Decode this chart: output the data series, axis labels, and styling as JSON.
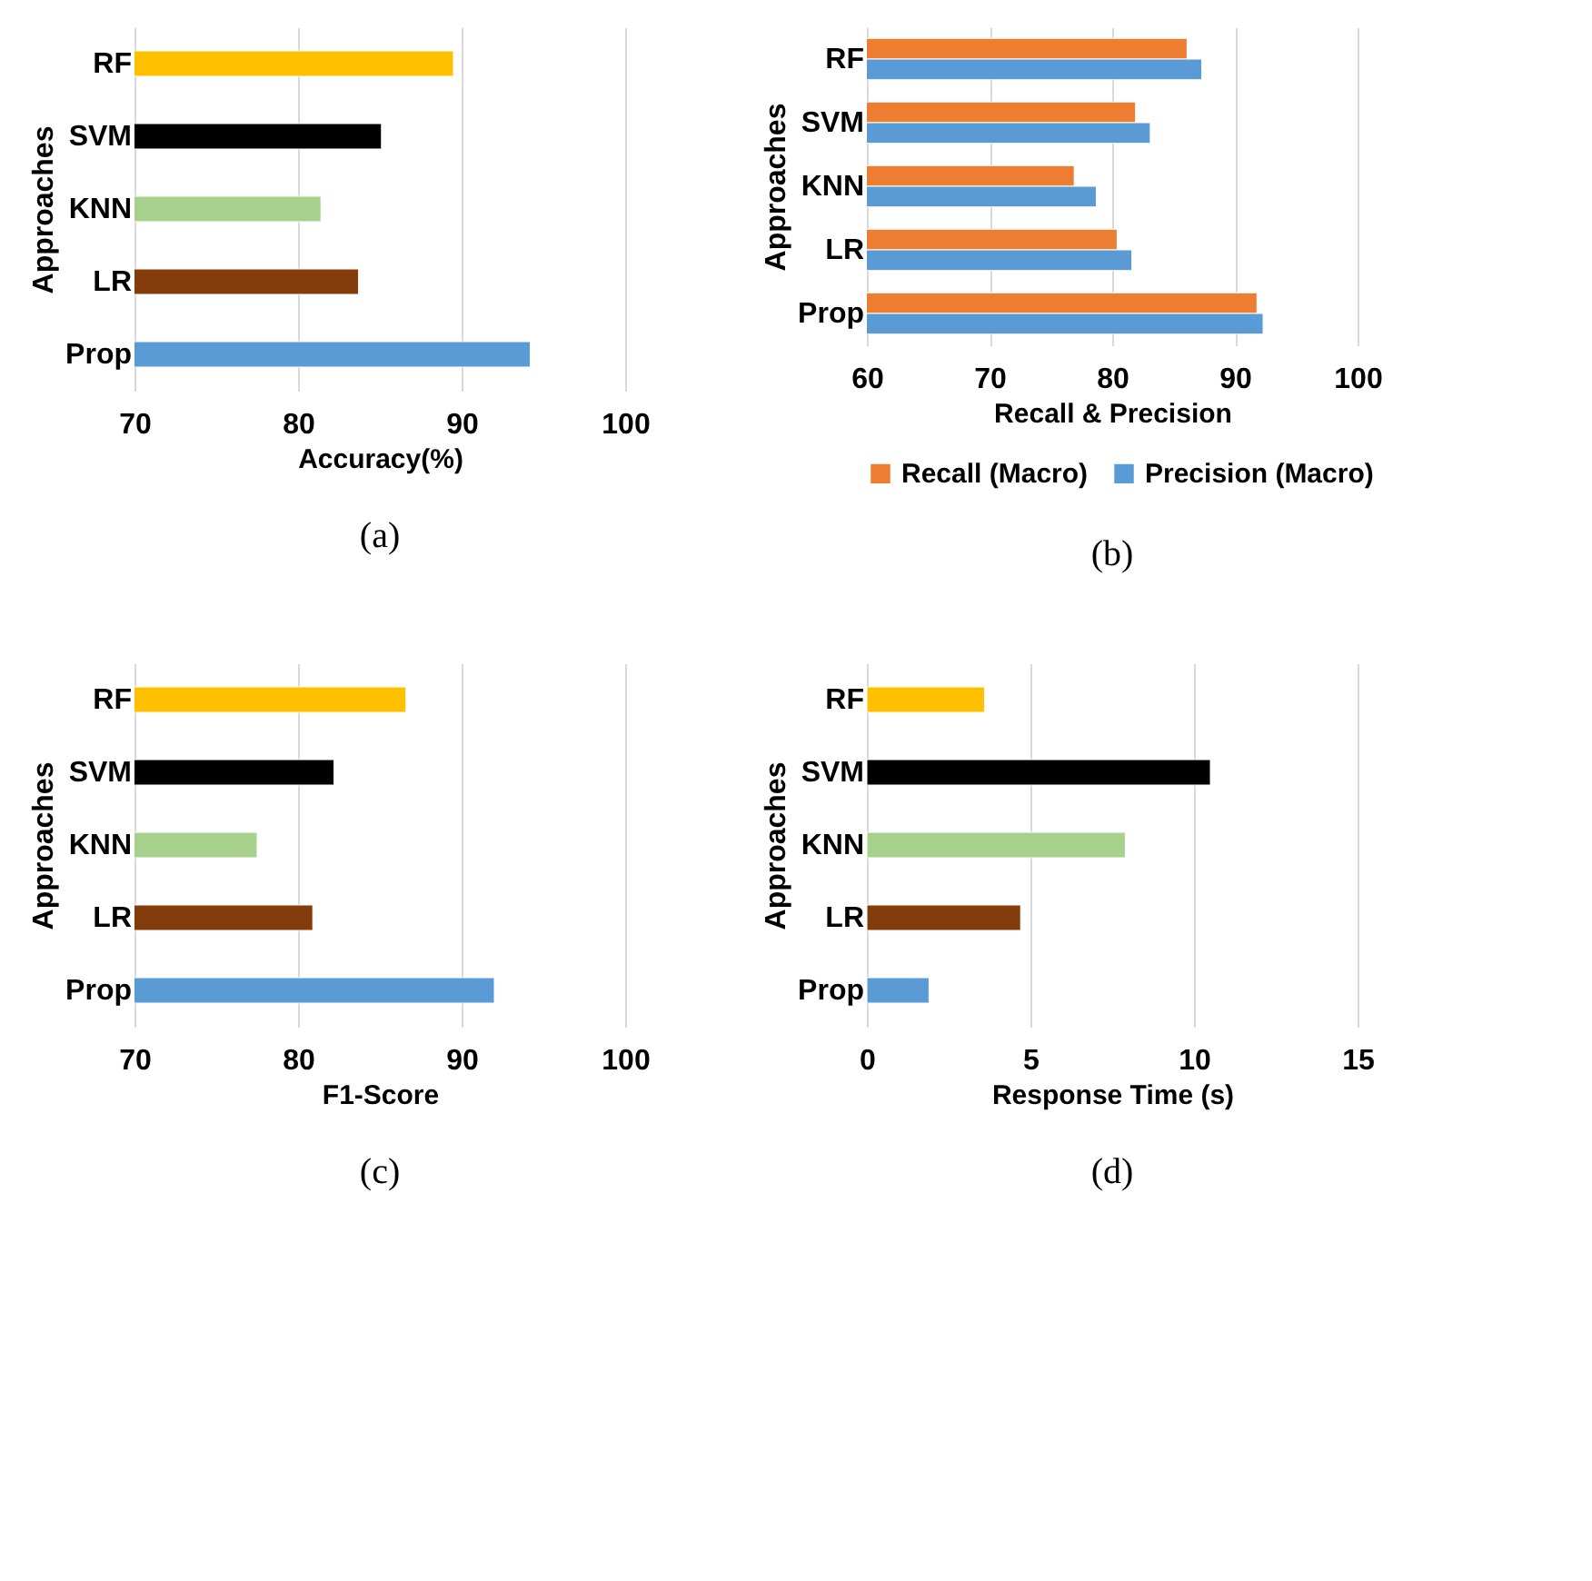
{
  "chart_data": [
    {
      "type": "bar",
      "orientation": "horizontal",
      "categories": [
        "RF",
        "SVM",
        "KNN",
        "LR",
        "Prop"
      ],
      "values": [
        89.5,
        85.1,
        81.4,
        83.7,
        94.2
      ],
      "colors": [
        "#ffc000",
        "#000000",
        "#a9d18e",
        "#843c0c",
        "#5b9bd5"
      ],
      "xlabel": "Accuracy(%)",
      "ylabel": "Approaches",
      "xlim": [
        70,
        100
      ],
      "xticks": [
        70,
        80,
        90,
        100
      ],
      "grid": "x",
      "legend": false,
      "annotations": [
        "(a)"
      ]
    },
    {
      "type": "bar",
      "orientation": "horizontal",
      "categories": [
        "RF",
        "SVM",
        "KNN",
        "LR",
        "Prop"
      ],
      "series": [
        {
          "name": "Recall (Macro)",
          "color": "#ed7d31",
          "values": [
            86.1,
            81.9,
            76.9,
            80.4,
            91.8
          ]
        },
        {
          "name": "Precision (Macro)",
          "color": "#5b9bd5",
          "values": [
            87.3,
            83.1,
            78.7,
            81.6,
            92.3
          ]
        }
      ],
      "xlabel": "Recall & Precision",
      "ylabel": "Approaches",
      "xlim": [
        60,
        100
      ],
      "xticks": [
        60,
        70,
        80,
        90,
        100
      ],
      "grid": "x",
      "legend": "bottom",
      "annotations": [
        "(b)"
      ]
    },
    {
      "type": "bar",
      "orientation": "horizontal",
      "categories": [
        "RF",
        "SVM",
        "KNN",
        "LR",
        "Prop"
      ],
      "values": [
        86.6,
        82.2,
        77.5,
        80.9,
        92.0
      ],
      "colors": [
        "#ffc000",
        "#000000",
        "#a9d18e",
        "#843c0c",
        "#5b9bd5"
      ],
      "xlabel": "F1-Score",
      "ylabel": "Approaches",
      "xlim": [
        70,
        100
      ],
      "xticks": [
        70,
        80,
        90,
        100
      ],
      "grid": "x",
      "legend": false,
      "annotations": [
        "(c)"
      ]
    },
    {
      "type": "bar",
      "orientation": "horizontal",
      "categories": [
        "RF",
        "SVM",
        "KNN",
        "LR",
        "Prop"
      ],
      "values": [
        3.6,
        10.5,
        7.9,
        4.7,
        1.9
      ],
      "colors": [
        "#ffc000",
        "#000000",
        "#a9d18e",
        "#843c0c",
        "#5b9bd5"
      ],
      "xlabel": "Response Time (s)",
      "ylabel": "Approaches",
      "xlim": [
        0,
        15
      ],
      "xticks": [
        0,
        5,
        10,
        15
      ],
      "grid": "x",
      "legend": false,
      "annotations": [
        "(d)"
      ]
    }
  ]
}
